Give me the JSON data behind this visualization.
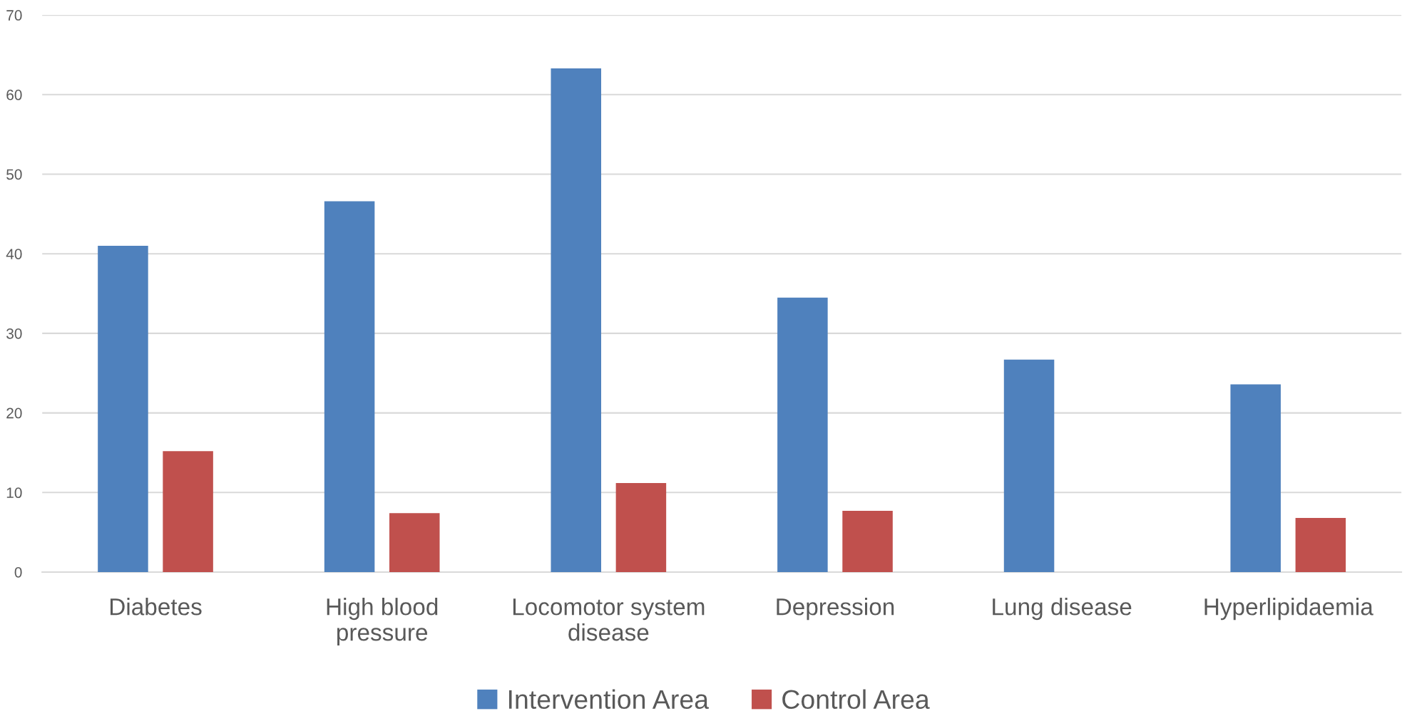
{
  "chart_data": {
    "type": "bar",
    "categories": [
      "Diabetes",
      "High blood\npressure",
      "Locomotor system\ndisease",
      "Depression",
      "Lung disease",
      "Hyperlipidaemia"
    ],
    "series": [
      {
        "name": "Intervention Area",
        "color": "#4f81bd",
        "values": [
          41.0,
          46.6,
          63.3,
          34.5,
          26.7,
          23.6
        ]
      },
      {
        "name": "Control Area",
        "color": "#c0504d",
        "values": [
          15.2,
          7.4,
          11.2,
          7.7,
          null,
          6.8
        ]
      }
    ],
    "ylim": [
      0,
      70
    ],
    "yticks": [
      0,
      10,
      20,
      30,
      40,
      50,
      60,
      70
    ],
    "grid": "y",
    "legend": "bottom"
  }
}
